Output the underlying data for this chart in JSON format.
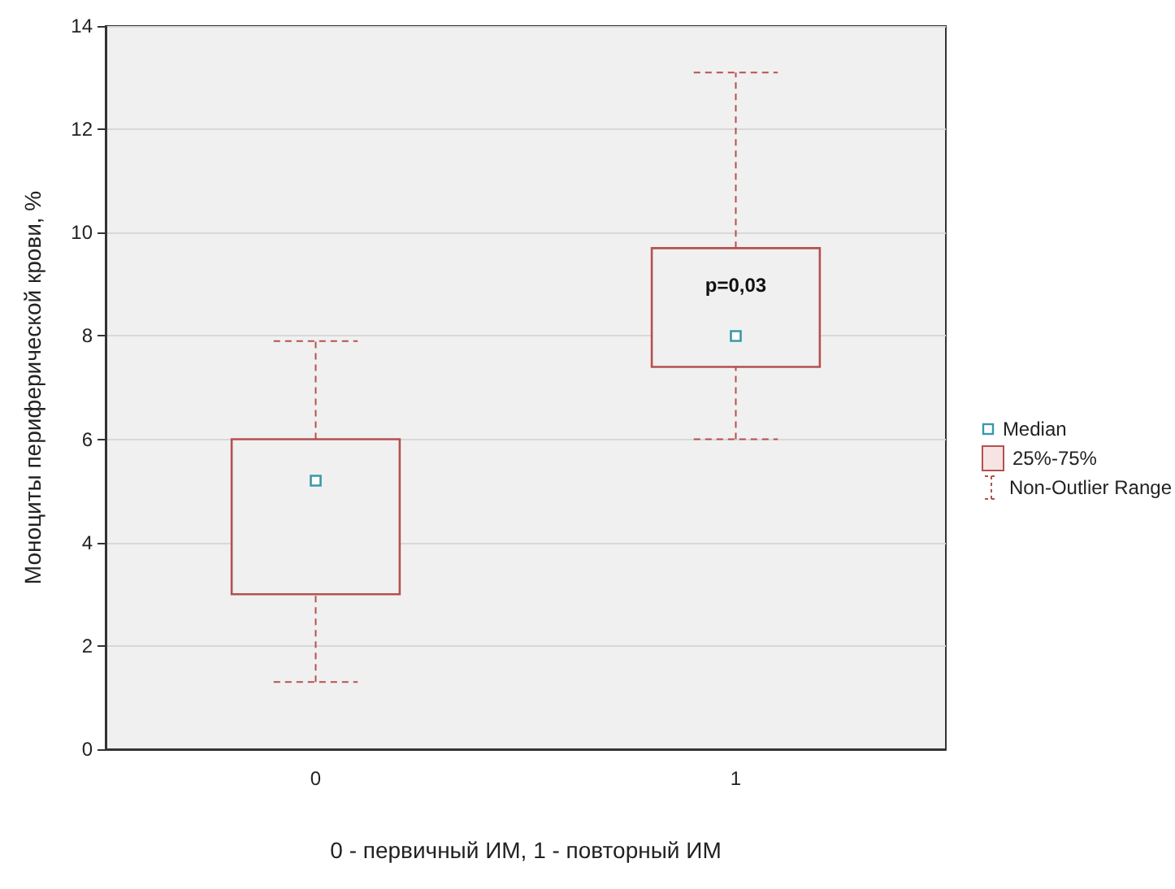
{
  "chart_data": {
    "type": "box",
    "xlabel": "0 - первичный ИМ, 1 - повторный ИМ",
    "ylabel": "Моноциты периферической крови, %",
    "categories": [
      "0",
      "1"
    ],
    "ylim": [
      0,
      14
    ],
    "yticks": [
      0,
      2,
      4,
      6,
      8,
      10,
      12,
      14
    ],
    "grid": "y",
    "legend": "right",
    "series": [
      {
        "name": "25%-75%",
        "color": "#b5504f",
        "boxes": [
          {
            "low": 1.3,
            "q1": 3.0,
            "median": 5.2,
            "q3": 6.0,
            "high": 7.9
          },
          {
            "low": 6.0,
            "q1": 7.4,
            "median": 8.0,
            "q3": 9.7,
            "high": 13.1
          }
        ]
      }
    ],
    "annotations": [
      "p=0,03",
      "Median",
      "Non-Outlier Range"
    ]
  }
}
